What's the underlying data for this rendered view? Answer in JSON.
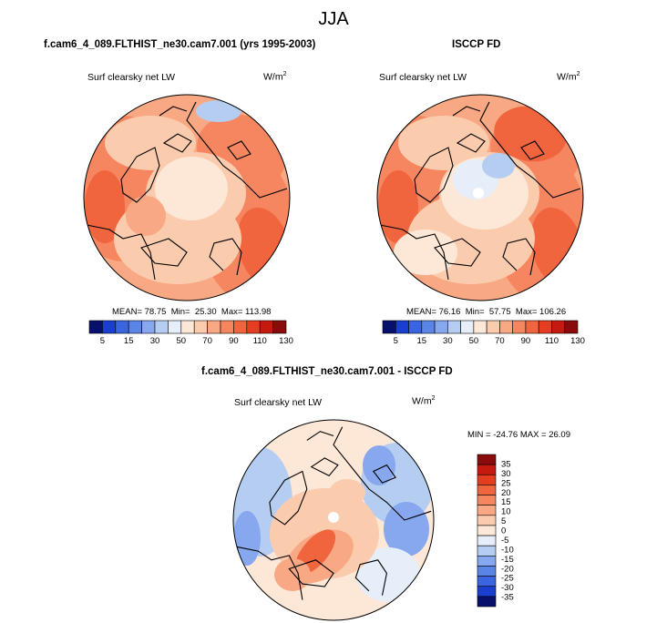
{
  "main_title": "JJA",
  "colors": {
    "scale": [
      "#08106e",
      "#1a3fd0",
      "#3a64e0",
      "#5a85e6",
      "#87a8ee",
      "#b6cdf2",
      "#e6eefa",
      "#fde8d8",
      "#fbcbae",
      "#f8a883",
      "#f58660",
      "#f0643e",
      "#e53d1f",
      "#c41a0f",
      "#8a0b0b"
    ],
    "background": "#ffffff",
    "coast": "#000000"
  },
  "chart_data": [
    {
      "type": "heatmap",
      "id": "model",
      "title": "f.cam6_4_089.FLTHIST_ne30.cam7.001 (yrs 1995-2003)",
      "variable": "Surf clearsky net LW",
      "units": "W/m",
      "units_exp": "2",
      "stats": {
        "mean_label": "MEAN=",
        "mean": "78.75",
        "min_label": "Min=",
        "min": "25.30",
        "max_label": "Max=",
        "max": "113.98"
      },
      "colorbar": {
        "orientation": "horizontal",
        "levels": [
          5,
          15,
          30,
          50,
          70,
          90,
          110,
          130
        ]
      },
      "projection": "north polar stereographic"
    },
    {
      "type": "heatmap",
      "id": "obs",
      "title": "ISCCP FD",
      "variable": "Surf clearsky net LW",
      "units": "W/m",
      "units_exp": "2",
      "stats": {
        "mean_label": "MEAN=",
        "mean": "76.16",
        "min_label": "Min=",
        "min": "57.75",
        "max_label": "Max=",
        "max": "106.26"
      },
      "colorbar": {
        "orientation": "horizontal",
        "levels": [
          5,
          15,
          30,
          50,
          70,
          90,
          110,
          130
        ]
      },
      "projection": "north polar stereographic"
    },
    {
      "type": "heatmap",
      "id": "diff",
      "title": "f.cam6_4_089.FLTHIST_ne30.cam7.001 - ISCCP FD",
      "variable": "Surf clearsky net LW",
      "units": "W/m",
      "units_exp": "2",
      "stats_text": "MIN = -24.76 MAX =  26.09",
      "colorbar": {
        "orientation": "vertical",
        "levels": [
          35,
          30,
          25,
          20,
          15,
          10,
          5,
          0,
          -5,
          -10,
          -15,
          -20,
          -25,
          -30,
          -35
        ]
      },
      "projection": "north polar stereographic"
    }
  ]
}
